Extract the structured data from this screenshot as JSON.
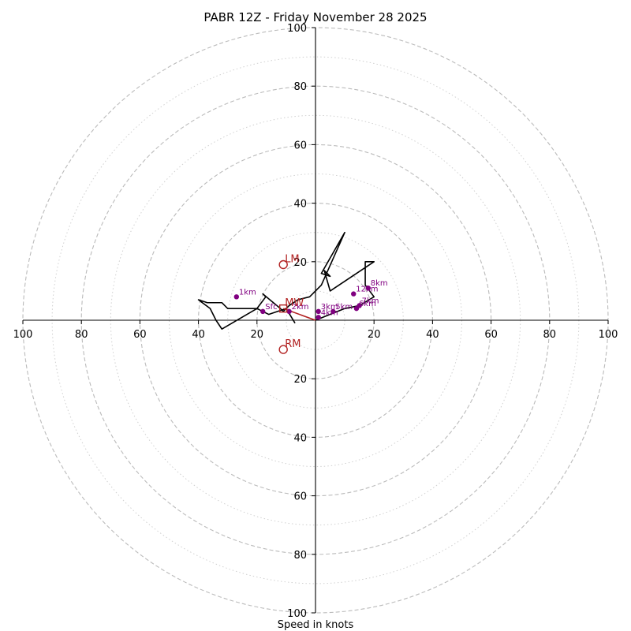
{
  "chart_data": {
    "type": "hodograph",
    "title": "PABR 12Z - Friday November 28 2025",
    "xlabel": "Speed in knots",
    "xlim": [
      -100,
      100
    ],
    "ylim": [
      -100,
      100
    ],
    "ring_ticks": [
      "20",
      "40",
      "60",
      "80",
      "100"
    ],
    "x_tick_labels": [
      "100",
      "80",
      "60",
      "40",
      "20",
      "20",
      "40",
      "60",
      "80",
      "100"
    ],
    "y_tick_labels": [
      "100",
      "80",
      "60",
      "40",
      "20",
      "20",
      "40",
      "60",
      "80",
      "100"
    ],
    "colors": {
      "trace": "#000000",
      "height_markers": "#800080",
      "storm_motion": "#b22222",
      "rings": "#bbbbbb"
    },
    "wind_trace": {
      "u": [
        -7,
        -10,
        -16,
        -20,
        -30,
        -32,
        -37,
        -40,
        -36,
        -34,
        -32,
        -20,
        -17,
        -18,
        -12,
        -11,
        -9,
        -6,
        -2,
        2,
        10,
        2,
        5,
        3,
        5,
        20,
        17,
        17,
        20,
        15,
        10,
        0
      ],
      "v": [
        -1,
        4,
        2,
        4,
        4,
        6,
        6,
        7,
        4,
        0,
        -3,
        4,
        8,
        9,
        4,
        3,
        5,
        7,
        8,
        12,
        30,
        16,
        15,
        17,
        10,
        20,
        20,
        12,
        8,
        5,
        4,
        0
      ]
    },
    "height_markers": [
      {
        "label": "Sfc",
        "u": -18,
        "v": 3
      },
      {
        "label": "1km",
        "u": -27,
        "v": 8
      },
      {
        "label": "2km",
        "u": -9,
        "v": 3
      },
      {
        "label": "3km",
        "u": 1,
        "v": 3
      },
      {
        "label": "4km",
        "u": 1,
        "v": 1
      },
      {
        "label": "5km",
        "u": 6,
        "v": 3
      },
      {
        "label": "6km",
        "u": 14,
        "v": 4
      },
      {
        "label": "7km",
        "u": 15,
        "v": 5
      },
      {
        "label": "8km",
        "u": 18,
        "v": 11
      },
      {
        "label": "12km",
        "u": 13,
        "v": 9
      }
    ],
    "storm_motion": [
      {
        "label": "LM",
        "u": -11,
        "v": 19,
        "marker": "circle"
      },
      {
        "label": "MW",
        "u": -11,
        "v": 4,
        "marker": "square"
      },
      {
        "label": "RM",
        "u": -11,
        "v": -10,
        "marker": "circle"
      }
    ],
    "shear_vector": {
      "from": {
        "u": 0,
        "v": 0
      },
      "to": {
        "u": -11,
        "v": 4
      }
    }
  }
}
